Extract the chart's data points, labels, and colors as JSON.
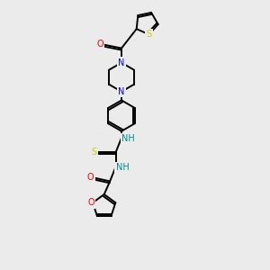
{
  "bg_color": "#ebebeb",
  "bond_color": "#000000",
  "atom_colors": {
    "N": "#0000ff",
    "O": "#ff0000",
    "S_thiophene": "#cccc00",
    "S_thio": "#cccc00",
    "NH": "#008b8b",
    "C": "#000000"
  },
  "figsize": [
    3.0,
    3.0
  ],
  "dpi": 100
}
